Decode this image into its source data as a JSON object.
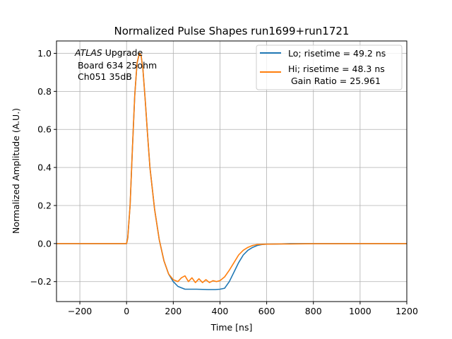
{
  "chart_data": {
    "type": "line",
    "title": "Normalized Pulse Shapes run1699+run1721",
    "xlabel": "Time [ns]",
    "ylabel": "Normalized Amplitude (A.U.)",
    "xlim": [
      -300,
      1200
    ],
    "ylim": [
      -0.305,
      1.065
    ],
    "grid": true,
    "x_ticks": [
      -200,
      0,
      200,
      400,
      600,
      800,
      1000,
      1200
    ],
    "x_tick_labels": [
      "−200",
      "0",
      "200",
      "400",
      "600",
      "800",
      "1000",
      "1200"
    ],
    "y_ticks": [
      -0.2,
      0.0,
      0.2,
      0.4,
      0.6,
      0.8,
      1.0
    ],
    "y_tick_labels": [
      "−0.2",
      "0.0",
      "0.2",
      "0.4",
      "0.6",
      "0.8",
      "1.0"
    ],
    "legend_position": "top-right",
    "annotation": {
      "line1_italic": "ATLAS",
      "line1_rest": " Upgrade",
      "line2": " Board 634 25ohm",
      "line3": " Ch051 35dB"
    },
    "series": [
      {
        "name": "Lo; risetime = 49.2 ns",
        "color": "#1f77b4",
        "x": [
          -300,
          -100,
          0,
          5,
          15,
          25,
          35,
          45,
          55,
          62,
          70,
          80,
          90,
          100,
          120,
          140,
          160,
          180,
          200,
          220,
          250,
          280,
          300,
          350,
          380,
          400,
          420,
          440,
          460,
          480,
          500,
          520,
          540,
          560,
          580,
          600,
          650,
          700,
          800,
          900,
          1000,
          1100,
          1200
        ],
        "y": [
          0.0,
          0.0,
          0.0,
          0.03,
          0.2,
          0.5,
          0.78,
          0.95,
          1.0,
          0.99,
          0.92,
          0.75,
          0.57,
          0.4,
          0.18,
          0.02,
          -0.09,
          -0.16,
          -0.2,
          -0.225,
          -0.24,
          -0.24,
          -0.24,
          -0.242,
          -0.242,
          -0.24,
          -0.235,
          -0.2,
          -0.15,
          -0.1,
          -0.06,
          -0.035,
          -0.02,
          -0.01,
          -0.005,
          -0.003,
          -0.002,
          0.0,
          0.0,
          0.0,
          0.0,
          0.0,
          0.0
        ]
      },
      {
        "name": "Hi; risetime = 48.3 ns",
        "name_line2": " Gain Ratio = 25.961",
        "color": "#ff7f0e",
        "x": [
          -300,
          -100,
          0,
          5,
          15,
          25,
          35,
          45,
          55,
          62,
          70,
          80,
          90,
          100,
          120,
          140,
          160,
          180,
          200,
          220,
          235,
          250,
          265,
          280,
          295,
          310,
          325,
          340,
          355,
          370,
          385,
          400,
          420,
          440,
          460,
          480,
          500,
          520,
          540,
          560,
          580,
          600,
          650,
          700,
          800,
          900,
          1000,
          1100,
          1200
        ],
        "y": [
          0.0,
          0.0,
          0.0,
          0.03,
          0.2,
          0.5,
          0.78,
          0.95,
          1.0,
          0.99,
          0.92,
          0.75,
          0.57,
          0.4,
          0.18,
          0.02,
          -0.09,
          -0.16,
          -0.19,
          -0.2,
          -0.18,
          -0.17,
          -0.2,
          -0.18,
          -0.205,
          -0.185,
          -0.205,
          -0.19,
          -0.205,
          -0.195,
          -0.2,
          -0.195,
          -0.175,
          -0.14,
          -0.1,
          -0.06,
          -0.035,
          -0.02,
          -0.01,
          -0.005,
          -0.004,
          -0.003,
          -0.002,
          -0.002,
          -0.001,
          -0.001,
          0.0,
          0.0,
          0.0
        ]
      }
    ]
  }
}
